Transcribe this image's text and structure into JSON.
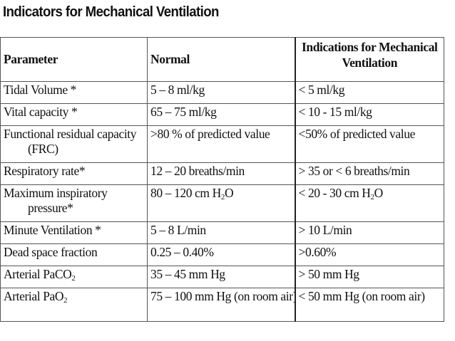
{
  "title": "Indicators for Mechanical Ventilation",
  "table": {
    "headers": {
      "parameter": "Parameter",
      "normal": "Normal",
      "indications": "Indications for Mechanical Ventilation"
    },
    "rows": [
      {
        "parameter": "Tidal Volume *",
        "normal": "5 – 8 ml/kg",
        "indication": "< 5 ml/kg"
      },
      {
        "parameter": "Vital capacity *",
        "normal": "65 – 75 ml/kg",
        "indication": "< 10 - 15 ml/kg"
      },
      {
        "parameter_line1": "Functional residual capacity",
        "parameter_line2": "(FRC)",
        "normal": ">80 % of predicted value",
        "indication": "<50% of predicted value"
      },
      {
        "parameter": "Respiratory rate*",
        "normal": "12 – 20 breaths/min",
        "indication": "> 35 or < 6 breaths/min"
      },
      {
        "parameter_line1": "Maximum inspiratory",
        "parameter_line2": "pressure*",
        "normal_pre": "80 – 120 cm H",
        "normal_sub": "2",
        "normal_post": "O",
        "indication_pre": "< 20 - 30 cm H",
        "indication_sub": "2",
        "indication_post": "O"
      },
      {
        "parameter": "Minute Ventilation *",
        "normal": "5 – 8 L/min",
        "indication": "> 10 L/min"
      },
      {
        "parameter": "Dead space fraction",
        "normal": "0.25 – 0.40%",
        "indication": ">0.60%"
      },
      {
        "parameter_pre": "Arterial PaCO",
        "parameter_sub": "2",
        "normal": "35 – 45 mm Hg",
        "indication": "> 50 mm Hg"
      },
      {
        "parameter_pre": "Arterial PaO",
        "parameter_sub": "2",
        "normal": "75 – 100 mm Hg (on room air)",
        "indication": "< 50 mm Hg (on room air)"
      }
    ]
  }
}
